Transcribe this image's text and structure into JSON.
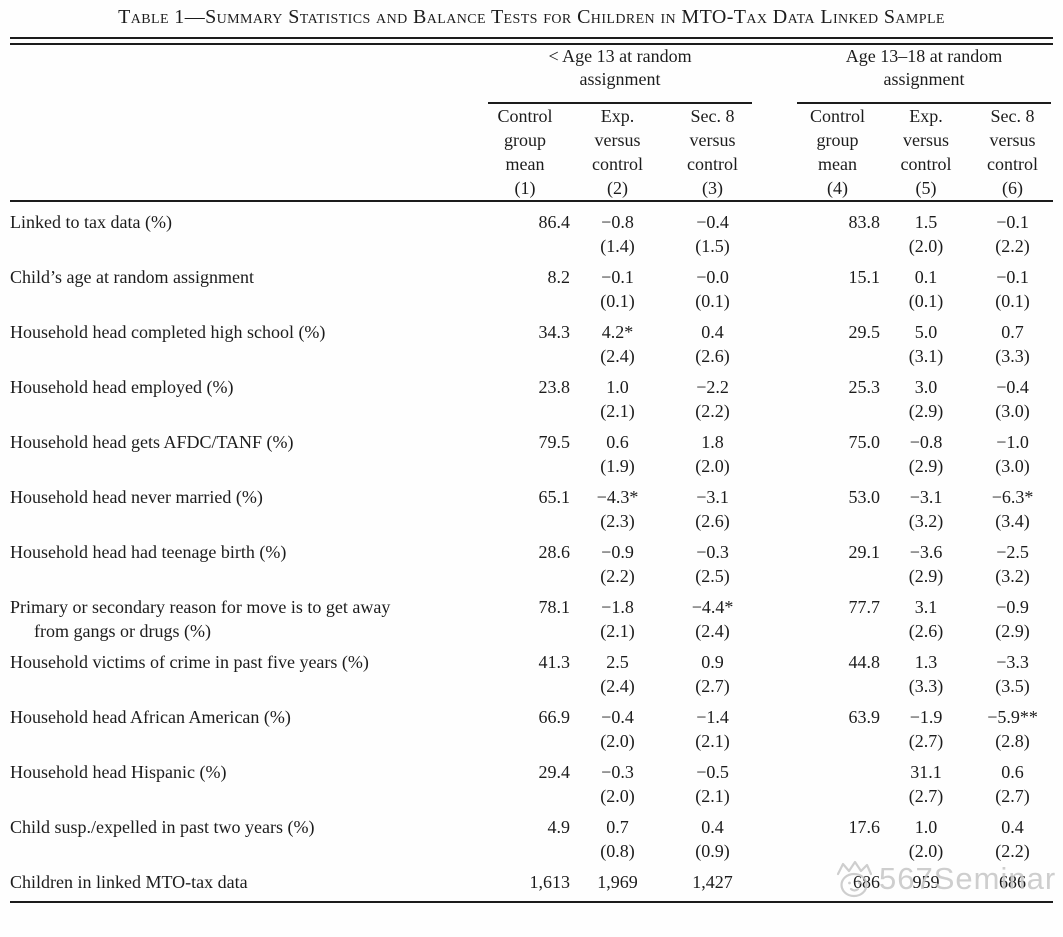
{
  "page": {
    "background": "#fefefe",
    "text_color": "#1c1c1c",
    "rule_color": "#1c1c1c"
  },
  "title": "Table 1—Summary Statistics and Balance Tests for Children in MTO-Tax Data Linked Sample",
  "table": {
    "groups": [
      {
        "line1": "< Age 13 at random",
        "line2": "assignment"
      },
      {
        "line1": "Age 13–18 at random",
        "line2": "assignment"
      }
    ],
    "columns": [
      {
        "lines": [
          "Control",
          "group",
          "mean"
        ],
        "number": "(1)"
      },
      {
        "lines": [
          "Exp.",
          "versus",
          "control"
        ],
        "number": "(2)"
      },
      {
        "lines": [
          "Sec. 8",
          "versus",
          "control"
        ],
        "number": "(3)"
      },
      {
        "lines": [
          "Control",
          "group",
          "mean"
        ],
        "number": "(4)"
      },
      {
        "lines": [
          "Exp.",
          "versus",
          "control"
        ],
        "number": "(5)"
      },
      {
        "lines": [
          "Sec. 8",
          "versus",
          "control"
        ],
        "number": "(6)"
      }
    ],
    "rows": [
      {
        "label": "Linked to tax data (%)",
        "label2": "",
        "cells": [
          {
            "v": "86.4",
            "se": ""
          },
          {
            "v": "−0.8",
            "se": "(1.4)"
          },
          {
            "v": "−0.4",
            "se": "(1.5)"
          },
          {
            "v": "83.8",
            "se": ""
          },
          {
            "v": "1.5",
            "se": "(2.0)"
          },
          {
            "v": "−0.1",
            "se": "(2.2)"
          }
        ]
      },
      {
        "label": "Child’s age at random assignment",
        "label2": "",
        "cells": [
          {
            "v": "8.2",
            "se": ""
          },
          {
            "v": "−0.1",
            "se": "(0.1)"
          },
          {
            "v": "−0.0",
            "se": "(0.1)"
          },
          {
            "v": "15.1",
            "se": ""
          },
          {
            "v": "0.1",
            "se": "(0.1)"
          },
          {
            "v": "−0.1",
            "se": "(0.1)"
          }
        ]
      },
      {
        "label": "Household head completed high school (%)",
        "label2": "",
        "cells": [
          {
            "v": "34.3",
            "se": ""
          },
          {
            "v": "4.2*",
            "se": "(2.4)"
          },
          {
            "v": "0.4",
            "se": "(2.6)"
          },
          {
            "v": "29.5",
            "se": ""
          },
          {
            "v": "5.0",
            "se": "(3.1)"
          },
          {
            "v": "0.7",
            "se": "(3.3)"
          }
        ]
      },
      {
        "label": "Household head employed (%)",
        "label2": "",
        "cells": [
          {
            "v": "23.8",
            "se": ""
          },
          {
            "v": "1.0",
            "se": "(2.1)"
          },
          {
            "v": "−2.2",
            "se": "(2.2)"
          },
          {
            "v": "25.3",
            "se": ""
          },
          {
            "v": "3.0",
            "se": "(2.9)"
          },
          {
            "v": "−0.4",
            "se": "(3.0)"
          }
        ]
      },
      {
        "label": "Household head gets AFDC/TANF (%)",
        "label2": "",
        "cells": [
          {
            "v": "79.5",
            "se": ""
          },
          {
            "v": "0.6",
            "se": "(1.9)"
          },
          {
            "v": "1.8",
            "se": "(2.0)"
          },
          {
            "v": "75.0",
            "se": ""
          },
          {
            "v": "−0.8",
            "se": "(2.9)"
          },
          {
            "v": "−1.0",
            "se": "(3.0)"
          }
        ]
      },
      {
        "label": "Household head never married (%)",
        "label2": "",
        "cells": [
          {
            "v": "65.1",
            "se": ""
          },
          {
            "v": "−4.3*",
            "se": "(2.3)"
          },
          {
            "v": "−3.1",
            "se": "(2.6)"
          },
          {
            "v": "53.0",
            "se": ""
          },
          {
            "v": "−3.1",
            "se": "(3.2)"
          },
          {
            "v": "−6.3*",
            "se": "(3.4)"
          }
        ]
      },
      {
        "label": "Household head had teenage birth (%)",
        "label2": "",
        "cells": [
          {
            "v": "28.6",
            "se": ""
          },
          {
            "v": "−0.9",
            "se": "(2.2)"
          },
          {
            "v": "−0.3",
            "se": "(2.5)"
          },
          {
            "v": "29.1",
            "se": ""
          },
          {
            "v": "−3.6",
            "se": "(2.9)"
          },
          {
            "v": "−2.5",
            "se": "(3.2)"
          }
        ]
      },
      {
        "label": "Primary or secondary reason for move is to get away",
        "label2": "from gangs or drugs (%)",
        "cells": [
          {
            "v": "78.1",
            "se": ""
          },
          {
            "v": "−1.8",
            "se": "(2.1)"
          },
          {
            "v": "−4.4*",
            "se": "(2.4)"
          },
          {
            "v": "77.7",
            "se": ""
          },
          {
            "v": "3.1",
            "se": "(2.6)"
          },
          {
            "v": "−0.9",
            "se": "(2.9)"
          }
        ]
      },
      {
        "label": "Household victims of crime in past five years (%)",
        "label2": "",
        "cells": [
          {
            "v": "41.3",
            "se": ""
          },
          {
            "v": "2.5",
            "se": "(2.4)"
          },
          {
            "v": "0.9",
            "se": "(2.7)"
          },
          {
            "v": "44.8",
            "se": ""
          },
          {
            "v": "1.3",
            "se": "(3.3)"
          },
          {
            "v": "−3.3",
            "se": "(3.5)"
          }
        ]
      },
      {
        "label": "Household head African American (%)",
        "label2": "",
        "cells": [
          {
            "v": "66.9",
            "se": ""
          },
          {
            "v": "−0.4",
            "se": "(2.0)"
          },
          {
            "v": "−1.4",
            "se": "(2.1)"
          },
          {
            "v": "63.9",
            "se": ""
          },
          {
            "v": "−1.9",
            "se": "(2.7)"
          },
          {
            "v": "−5.9**",
            "se": "(2.8)"
          }
        ]
      },
      {
        "label": "Household head Hispanic (%)",
        "label2": "",
        "cells": [
          {
            "v": "29.4",
            "se": ""
          },
          {
            "v": "−0.3",
            "se": "(2.0)"
          },
          {
            "v": "−0.5",
            "se": "(2.1)"
          },
          {
            "v": "",
            "se": ""
          },
          {
            "v": "31.1",
            "se": "(2.7)"
          },
          {
            "v": "0.6",
            "se": "(2.7)"
          }
        ]
      },
      {
        "label": "Child susp./expelled in past two years (%)",
        "label2": "",
        "cells": [
          {
            "v": "4.9",
            "se": ""
          },
          {
            "v": "0.7",
            "se": "(0.8)"
          },
          {
            "v": "0.4",
            "se": "(0.9)"
          },
          {
            "v": "17.6",
            "se": ""
          },
          {
            "v": "1.0",
            "se": "(2.0)"
          },
          {
            "v": "0.4",
            "se": "(2.2)"
          }
        ]
      }
    ],
    "counts_row": {
      "label": "Children in linked MTO-tax data",
      "values": [
        "1,613",
        "1,969",
        "1,427",
        "686",
        "959",
        "686"
      ]
    }
  },
  "watermark": {
    "text": "567Seminar",
    "color": "#c6c6c6"
  }
}
